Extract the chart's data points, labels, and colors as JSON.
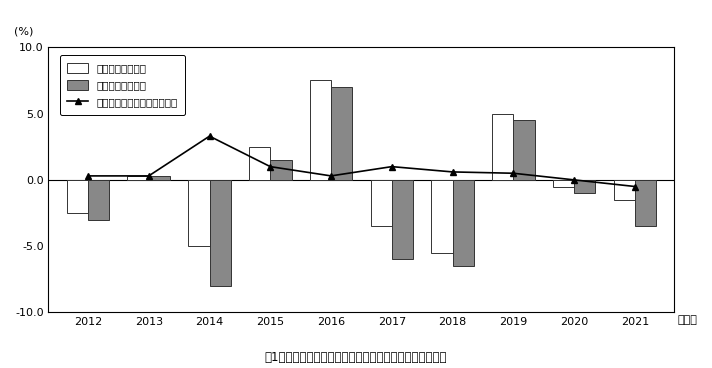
{
  "years": [
    2012,
    2013,
    2014,
    2015,
    2016,
    2017,
    2018,
    2019,
    2020,
    2021
  ],
  "nominal": [
    -2.5,
    0.3,
    -5.0,
    2.5,
    7.5,
    -3.5,
    -5.5,
    5.0,
    -0.5,
    -1.5
  ],
  "real": [
    -3.0,
    0.3,
    -8.0,
    1.5,
    7.0,
    -6.0,
    -6.5,
    4.5,
    -1.0,
    -3.5
  ],
  "cpi": [
    0.3,
    0.3,
    3.3,
    1.0,
    0.3,
    1.0,
    0.6,
    0.5,
    0.0,
    -0.5
  ],
  "bar_width": 0.35,
  "nominal_color": "white",
  "nominal_edge": "#333333",
  "real_color": "#888888",
  "real_edge": "#333333",
  "line_color": "black",
  "ylim": [
    -10.0,
    10.0
  ],
  "yticks": [
    -10.0,
    -5.0,
    0.0,
    5.0,
    10.0
  ],
  "ytick_labels": [
    "-10.0",
    "-5.0",
    "0.0",
    "5.0",
    "10.0"
  ],
  "ylabel": "(%)",
  "xlabel_year": "（年）",
  "title": "囱1　消費支出の対前年増減率の推移（二人以上の世帯）",
  "legend_nominal": "名目増減率（％）",
  "legend_real": "実質増減率（％）",
  "legend_cpi": "消費者物価指数変化率（％）",
  "bg_color": "white",
  "fig_width": 7.12,
  "fig_height": 3.68,
  "dpi": 100
}
